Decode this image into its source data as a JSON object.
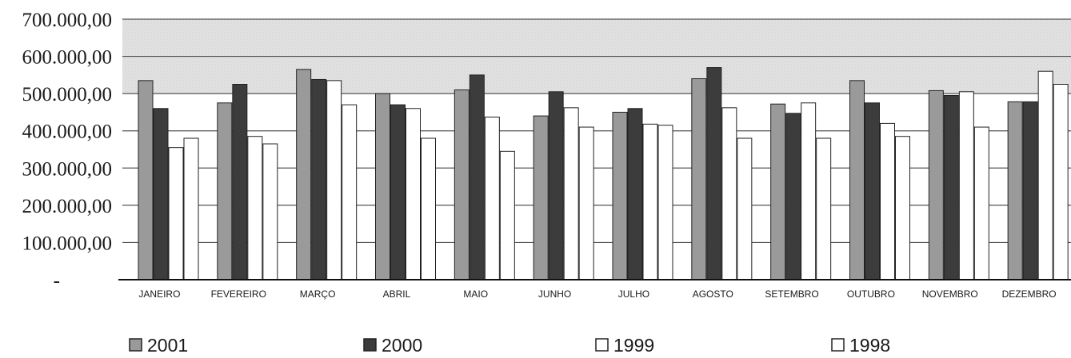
{
  "chart_data": {
    "type": "bar",
    "categories": [
      "JANEIRO",
      "FEVEREIRO",
      "MARÇO",
      "ABRIL",
      "MAIO",
      "JUNHO",
      "JULHO",
      "AGOSTO",
      "SETEMBRO",
      "OUTUBRO",
      "NOVEMBRO",
      "DEZEMBRO"
    ],
    "series": [
      {
        "name": "2001",
        "color": "#9a9a9a",
        "values": [
          535000,
          475000,
          565000,
          500000,
          510000,
          440000,
          450000,
          540000,
          472000,
          535000,
          508000,
          478000
        ]
      },
      {
        "name": "2000",
        "color": "#3c3c3c",
        "values": [
          460000,
          525000,
          538000,
          470000,
          550000,
          505000,
          460000,
          570000,
          447000,
          475000,
          495000,
          478000
        ]
      },
      {
        "name": "1999",
        "color": "#ffffff",
        "values": [
          355000,
          385000,
          535000,
          460000,
          437000,
          462000,
          418000,
          462000,
          475000,
          420000,
          505000,
          560000
        ]
      },
      {
        "name": "1998",
        "color": "#ffffff",
        "values": [
          380000,
          365000,
          470000,
          380000,
          345000,
          410000,
          415000,
          380000,
          380000,
          385000,
          410000,
          525000
        ]
      }
    ],
    "y_ticks": [
      "-",
      "100.000,00",
      "200.000,00",
      "300.000,00",
      "400.000,00",
      "500.000,00",
      "600.000,00",
      "700.000,00"
    ],
    "ylim": [
      0,
      700000
    ],
    "grid": true,
    "legend_position": "bottom",
    "title": "",
    "xlabel": "",
    "ylabel": ""
  }
}
